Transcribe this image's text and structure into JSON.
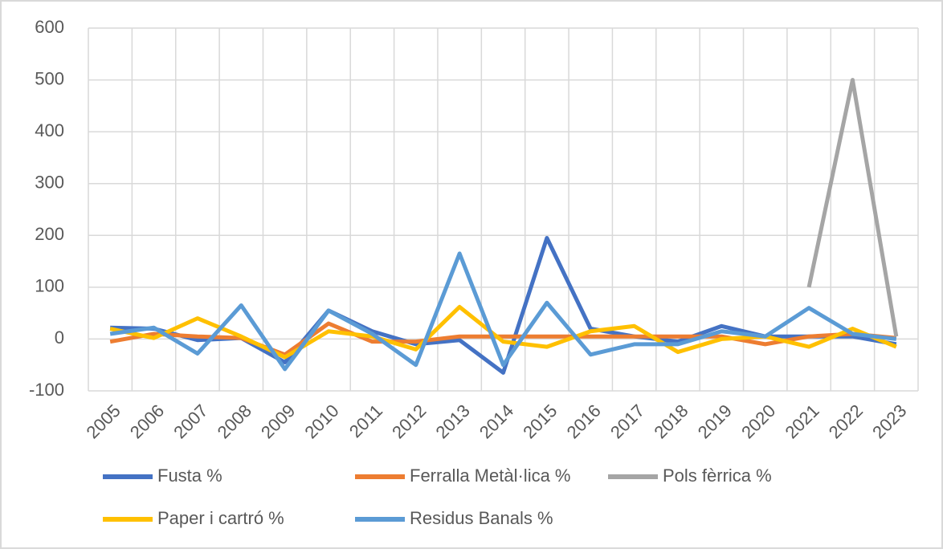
{
  "chart_data": {
    "type": "line",
    "categories": [
      "2005",
      "2006",
      "2007",
      "2008",
      "2009",
      "2010",
      "2011",
      "2012",
      "2013",
      "2014",
      "2015",
      "2016",
      "2017",
      "2018",
      "2019",
      "2020",
      "2021",
      "2022",
      "2023"
    ],
    "series": [
      {
        "name": "Fusta %",
        "color": "#4472c4",
        "values": [
          22,
          20,
          -2,
          2,
          -45,
          55,
          15,
          -10,
          -2,
          -65,
          195,
          20,
          5,
          -5,
          25,
          5,
          5,
          5,
          -10
        ]
      },
      {
        "name": "Ferralla Metàl·lica %",
        "color": "#ed7d31",
        "values": [
          -5,
          10,
          5,
          2,
          -30,
          30,
          -5,
          -5,
          5,
          5,
          5,
          5,
          5,
          5,
          5,
          -10,
          5,
          10,
          2
        ]
      },
      {
        "name": "Pols fèrrica %",
        "color": "#a5a5a5",
        "values": [
          null,
          null,
          null,
          null,
          null,
          null,
          null,
          null,
          null,
          null,
          null,
          null,
          null,
          null,
          null,
          null,
          100,
          500,
          5
        ]
      },
      {
        "name": "Paper i cartró %",
        "color": "#ffc000",
        "values": [
          20,
          2,
          40,
          5,
          -35,
          15,
          5,
          -20,
          62,
          -5,
          -15,
          15,
          25,
          -25,
          0,
          5,
          -15,
          20,
          -15
        ]
      },
      {
        "name": "Residus Banals %",
        "color": "#5b9bd5",
        "values": [
          10,
          22,
          -28,
          65,
          -58,
          55,
          10,
          -50,
          165,
          -50,
          70,
          -30,
          -10,
          -10,
          15,
          5,
          60,
          10,
          0
        ]
      }
    ],
    "ylim": [
      -100,
      600
    ],
    "yticks": [
      -100,
      0,
      100,
      200,
      300,
      400,
      500,
      600
    ],
    "grid": true
  }
}
